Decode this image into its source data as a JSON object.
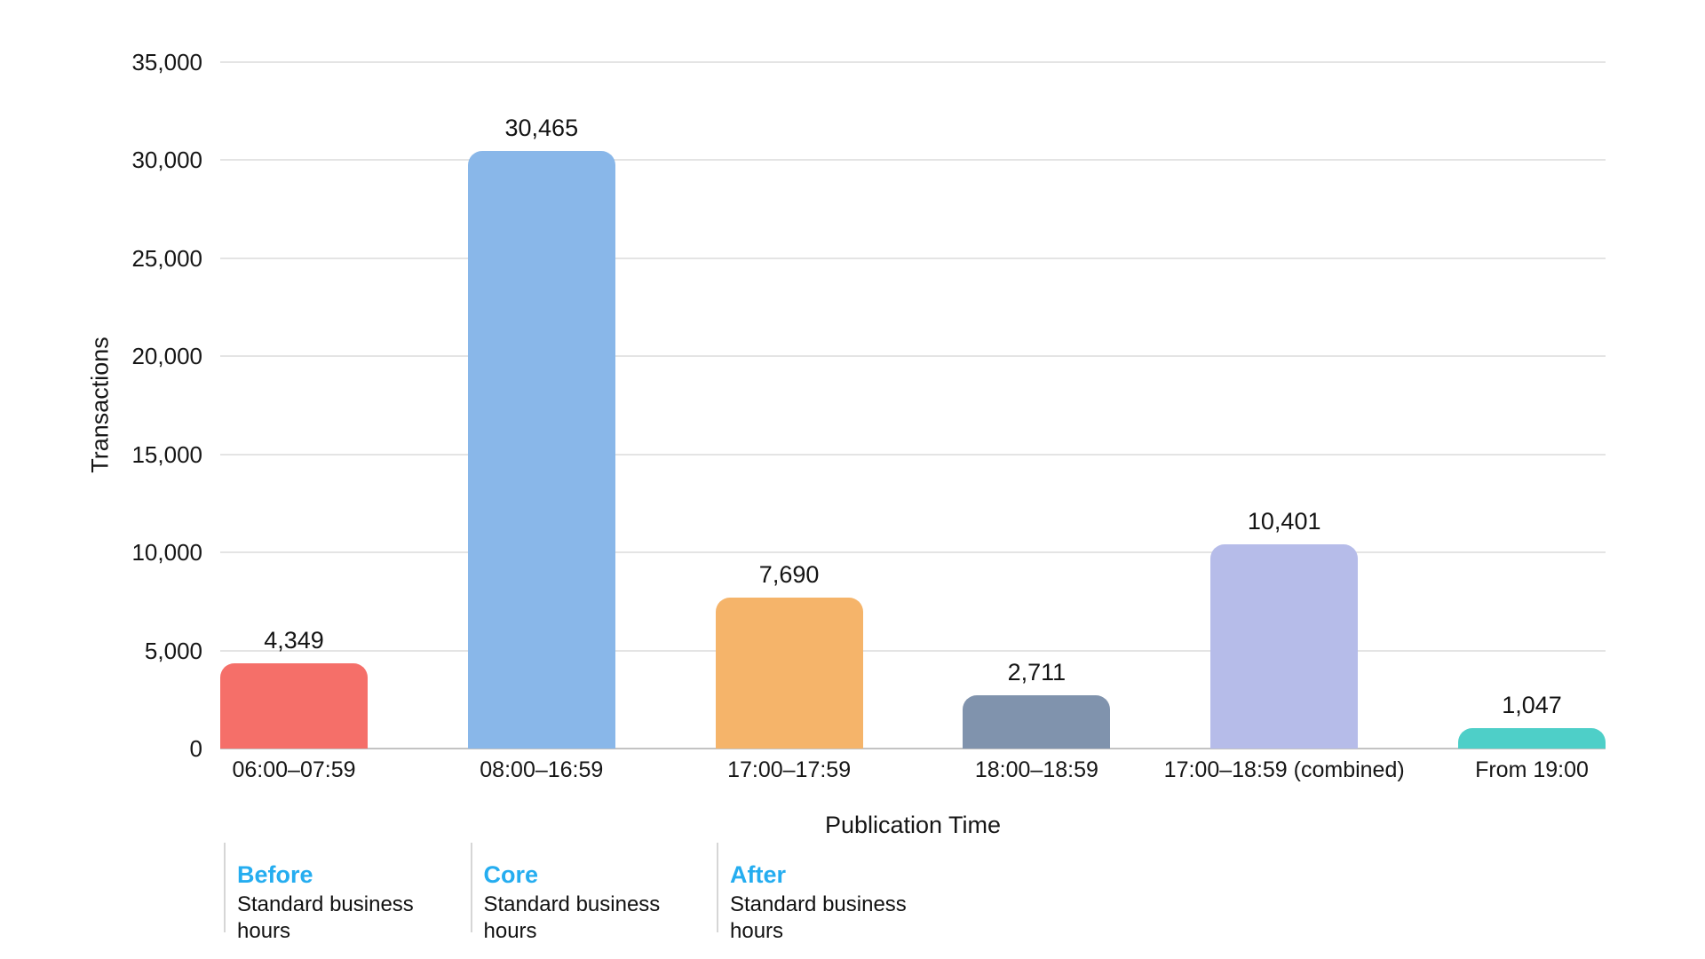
{
  "chart_data": {
    "type": "bar",
    "title": "",
    "xlabel": "Publication Time",
    "ylabel": "Transactions",
    "categories": [
      "06:00–07:59",
      "08:00–16:59",
      "17:00–17:59",
      "18:00–18:59",
      "17:00–18:59 (combined)",
      "From 19:00"
    ],
    "values": [
      4349,
      30465,
      7690,
      2711,
      10401,
      1047
    ],
    "value_labels": [
      "4,349",
      "30,465",
      "7,690",
      "2,711",
      "10,401",
      "1,047"
    ],
    "bar_colors": [
      "#F56F69",
      "#89B7E9",
      "#F5B46A",
      "#8093AD",
      "#B6BCE9",
      "#4ECFC8"
    ],
    "ylim": [
      0,
      35000
    ],
    "ytick_values": [
      0,
      5000,
      10000,
      15000,
      20000,
      25000,
      30000,
      35000
    ],
    "ytick_labels": [
      "0",
      "5,000",
      "10,000",
      "15,000",
      "20,000",
      "25,000",
      "30,000",
      "35,000"
    ],
    "grid": "horizontal",
    "legend_position": "bottom"
  },
  "legend": {
    "accent_color": "#25ADF0",
    "items": [
      {
        "title": "Before",
        "subtitle": "Standard business hours"
      },
      {
        "title": "Core",
        "subtitle": "Standard business hours"
      },
      {
        "title": "After",
        "subtitle": "Standard business hours"
      }
    ]
  }
}
